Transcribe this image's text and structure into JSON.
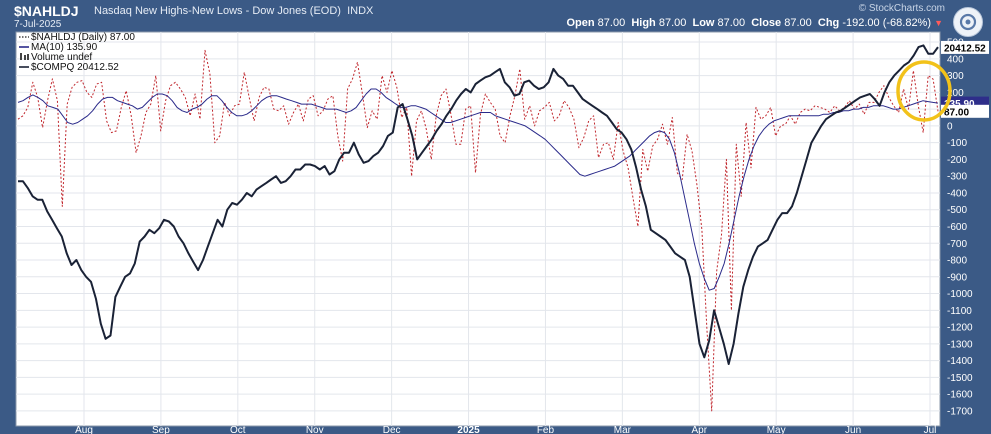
{
  "header": {
    "symbol": "$NAHLDJ",
    "description": "Nasdaq New Highs-New Lows - Dow Jones (EOD)",
    "exchange": "INDX",
    "date": "7-Jul-2025",
    "brand": "© StockCharts.com",
    "open_label": "Open",
    "open": "87.00",
    "high_label": "High",
    "high": "87.00",
    "low_label": "Low",
    "low": "87.00",
    "close_label": "Close",
    "close": "87.00",
    "chg_label": "Chg",
    "chg": "-192.00 (-68.82%)",
    "settings_icon": "gear-icon"
  },
  "legend": [
    {
      "text": "$NAHLDJ (Daily) 87.00",
      "style": "dotted",
      "color": "#222222"
    },
    {
      "text": "MA(10) 135.90",
      "style": "solid",
      "color": "#2a2a8a"
    },
    {
      "text": "Volume undef",
      "style": "bars",
      "color": "#444444"
    },
    {
      "text": "$COMPQ 20412.52",
      "style": "solid",
      "color": "#1a2236"
    }
  ],
  "chart_data": {
    "type": "line",
    "x_labels": [
      "Aug",
      "Sep",
      "Oct",
      "Nov",
      "Dec",
      "2025",
      "Feb",
      "Mar",
      "Apr",
      "May",
      "Jun",
      "Jul"
    ],
    "y_ticks": [
      500,
      400,
      300,
      200,
      100,
      0,
      -100,
      -200,
      -300,
      -400,
      -500,
      -600,
      -700,
      -800,
      -900,
      -1000,
      -1100,
      -1200,
      -1300,
      -1400,
      -1500,
      -1600,
      -1700
    ],
    "ylim": [
      -1790,
      560
    ],
    "value_tags": [
      {
        "label": "20412.52",
        "value": 468,
        "bg": "#ffffff",
        "fg": "#000000"
      },
      {
        "label": "135.90",
        "value": 136,
        "bg": "#2e2e8a",
        "fg": "#ffffff"
      },
      {
        "label": "87.00",
        "value": 87,
        "bg": "#ffffff",
        "fg": "#000000"
      }
    ],
    "series": [
      {
        "name": "$NAHLDJ (Daily)",
        "color": "#c0262c",
        "values": [
          40,
          60,
          110,
          260,
          170,
          -10,
          150,
          280,
          150,
          -480,
          130,
          230,
          260,
          270,
          200,
          170,
          250,
          260,
          30,
          -40,
          -30,
          110,
          210,
          60,
          -160,
          -60,
          80,
          130,
          300,
          -30,
          150,
          240,
          260,
          220,
          170,
          60,
          190,
          40,
          450,
          310,
          -100,
          -60,
          140,
          60,
          120,
          130,
          320,
          170,
          30,
          170,
          230,
          220,
          100,
          90,
          120,
          10,
          80,
          130,
          30,
          160,
          180,
          60,
          90,
          160,
          180,
          -60,
          -210,
          220,
          280,
          380,
          190,
          -10,
          90,
          40,
          300,
          200,
          330,
          230,
          50,
          110,
          -300,
          30,
          90,
          -20,
          -200,
          60,
          180,
          220,
          70,
          -110,
          -110,
          100,
          120,
          -280,
          70,
          190,
          140,
          100,
          -60,
          -100,
          60,
          180,
          340,
          40,
          120,
          0,
          90,
          110,
          140,
          30,
          60,
          150,
          110,
          40,
          -130,
          -70,
          30,
          60,
          -190,
          -110,
          -100,
          -200,
          20,
          -150,
          -250,
          -430,
          -600,
          -140,
          -270,
          -120,
          -80,
          10,
          -110,
          50,
          -280,
          -320,
          -50,
          -150,
          -350,
          -620,
          -1200,
          -1700,
          -870,
          -650,
          -200,
          -1100,
          -110,
          -420,
          20,
          -250,
          110,
          40,
          60,
          110,
          -60,
          0,
          10,
          60,
          10,
          80,
          100,
          90,
          120,
          110,
          100,
          80,
          120,
          90,
          110,
          150,
          100,
          130,
          70,
          140,
          140,
          200,
          240,
          170,
          120,
          80,
          220,
          100,
          330,
          120,
          -40,
          300,
          279,
          87
        ]
      },
      {
        "name": "MA(10)",
        "color": "#2a2a8a",
        "values": [
          140,
          150,
          170,
          185,
          170,
          150,
          120,
          110,
          100,
          60,
          20,
          10,
          20,
          40,
          60,
          90,
          130,
          160,
          170,
          170,
          150,
          140,
          130,
          120,
          100,
          110,
          140,
          170,
          190,
          190,
          180,
          150,
          110,
          90,
          80,
          100,
          110,
          130,
          160,
          180,
          180,
          150,
          110,
          80,
          60,
          60,
          70,
          90,
          120,
          150,
          170,
          180,
          180,
          170,
          160,
          150,
          140,
          130,
          130,
          130,
          120,
          110,
          100,
          100,
          100,
          90,
          80,
          90,
          110,
          150,
          190,
          220,
          220,
          200,
          170,
          150,
          130,
          110,
          110,
          120,
          120,
          110,
          100,
          80,
          60,
          40,
          20,
          20,
          30,
          40,
          50,
          60,
          70,
          80,
          80,
          80,
          60,
          50,
          40,
          30,
          20,
          10,
          0,
          -20,
          -40,
          -60,
          -80,
          -110,
          -140,
          -170,
          -200,
          -230,
          -260,
          -290,
          -300,
          -290,
          -280,
          -270,
          -260,
          -250,
          -240,
          -220,
          -200,
          -180,
          -150,
          -120,
          -90,
          -60,
          -40,
          -30,
          -40,
          -80,
          -160,
          -280,
          -420,
          -560,
          -700,
          -820,
          -910,
          -980,
          -970,
          -900,
          -820,
          -700,
          -560,
          -420,
          -300,
          -200,
          -120,
          -60,
          -20,
          10,
          30,
          40,
          50,
          60,
          60,
          60,
          60,
          60,
          60,
          60,
          70,
          70,
          80,
          80,
          90,
          90,
          100,
          100,
          110,
          110,
          120,
          120,
          120,
          110,
          100,
          100,
          110,
          120,
          130,
          140,
          150,
          145,
          140,
          136
        ]
      },
      {
        "name": "$COMPQ",
        "color": "#1a2236",
        "values": [
          -330,
          -330,
          -370,
          -420,
          -440,
          -440,
          -510,
          -560,
          -610,
          -660,
          -760,
          -830,
          -800,
          -860,
          -900,
          -930,
          -1030,
          -1180,
          -1270,
          -1250,
          -1020,
          -960,
          -900,
          -880,
          -820,
          -690,
          -660,
          -620,
          -640,
          -610,
          -560,
          -570,
          -600,
          -660,
          -700,
          -760,
          -810,
          -860,
          -800,
          -720,
          -640,
          -560,
          -600,
          -500,
          -460,
          -470,
          -440,
          -400,
          -420,
          -380,
          -360,
          -340,
          -320,
          -300,
          -340,
          -330,
          -300,
          -260,
          -260,
          -230,
          -230,
          -240,
          -260,
          -240,
          -290,
          -270,
          -200,
          -160,
          -160,
          -100,
          -170,
          -220,
          -210,
          -180,
          -160,
          -120,
          -60,
          -40,
          110,
          130,
          40,
          -60,
          -200,
          -160,
          -120,
          -80,
          -30,
          10,
          60,
          100,
          150,
          190,
          220,
          200,
          250,
          270,
          290,
          300,
          320,
          340,
          260,
          230,
          180,
          190,
          260,
          270,
          240,
          220,
          230,
          260,
          340,
          300,
          280,
          240,
          240,
          200,
          160,
          140,
          120,
          100,
          80,
          60,
          20,
          -20,
          -40,
          -80,
          -140,
          -250,
          -380,
          -480,
          -620,
          -640,
          -660,
          -680,
          -720,
          -760,
          -780,
          -800,
          -900,
          -1100,
          -1300,
          -1380,
          -1280,
          -1100,
          -1200,
          -1300,
          -1420,
          -1300,
          -1120,
          -960,
          -860,
          -780,
          -720,
          -700,
          -680,
          -620,
          -560,
          -520,
          -520,
          -480,
          -400,
          -300,
          -200,
          -100,
          -50,
          0,
          40,
          60,
          80,
          90,
          110,
          130,
          150,
          170,
          180,
          190,
          160,
          120,
          200,
          260,
          300,
          330,
          360,
          380,
          420,
          470,
          480,
          430,
          430,
          470
        ]
      }
    ]
  }
}
